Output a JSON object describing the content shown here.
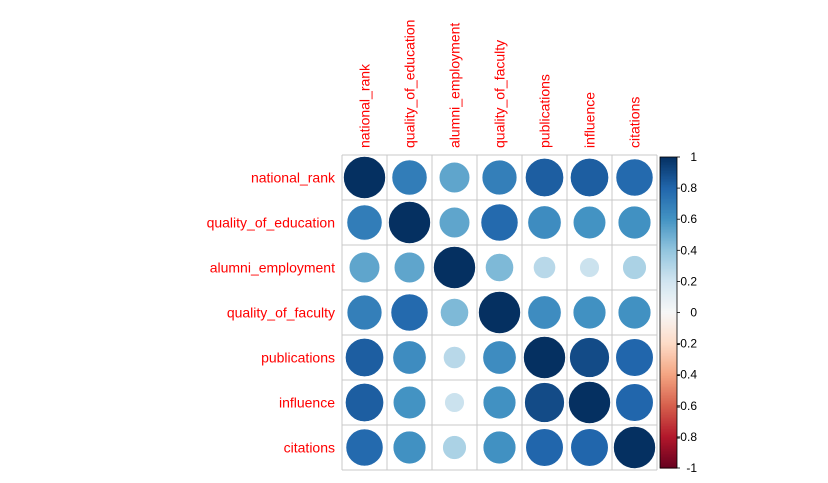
{
  "chart_data": {
    "type": "heatmap",
    "variables": [
      "national_rank",
      "quality_of_education",
      "alumni_employment",
      "quality_of_faculty",
      "publications",
      "influence",
      "citations"
    ],
    "matrix": [
      [
        1.0,
        0.7,
        0.53,
        0.69,
        0.83,
        0.83,
        0.78
      ],
      [
        0.7,
        1.0,
        0.53,
        0.78,
        0.63,
        0.6,
        0.61
      ],
      [
        0.53,
        0.53,
        1.0,
        0.45,
        0.28,
        0.22,
        0.32
      ],
      [
        0.69,
        0.78,
        0.45,
        1.0,
        0.63,
        0.61,
        0.61
      ],
      [
        0.83,
        0.63,
        0.28,
        0.63,
        1.0,
        0.9,
        0.8
      ],
      [
        0.83,
        0.6,
        0.22,
        0.61,
        0.9,
        1.0,
        0.8
      ],
      [
        0.78,
        0.61,
        0.32,
        0.61,
        0.8,
        0.8,
        1.0
      ]
    ],
    "colorbar": {
      "range": [
        -1,
        1
      ],
      "ticks": [
        "1",
        "0.8",
        "0.6",
        "0.4",
        "0.2",
        "0",
        "-0.2",
        "-0.4",
        "-0.6",
        "-0.8",
        "-1"
      ]
    },
    "colors": {
      "negative_end": "#67001f",
      "neutral": "#f7f7f7",
      "positive_end": "#053061",
      "label": "#ff0000",
      "grid": "#c8c8c8"
    }
  }
}
